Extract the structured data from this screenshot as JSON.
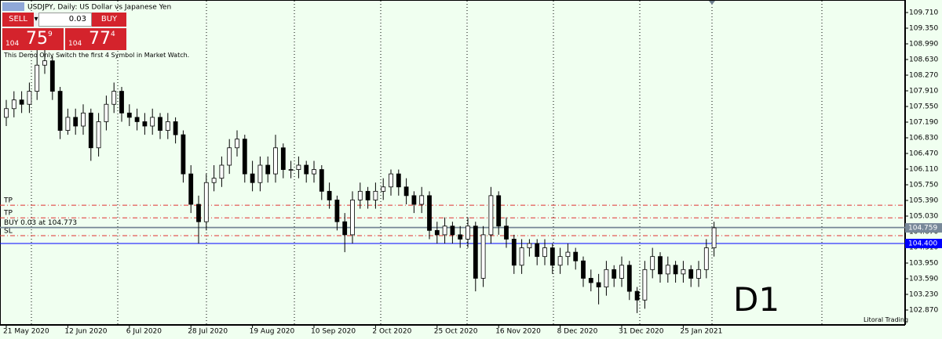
{
  "chart_data": {
    "type": "candlestick",
    "title": "USDJPY, Daily: US Dollar vs Japanese Yen",
    "categories": [
      "21 May 2020",
      null,
      null,
      null,
      null,
      null,
      null,
      null,
      "12 Jun 2020",
      null,
      null,
      null,
      null,
      null,
      null,
      null,
      "6 Jul 2020",
      null,
      null,
      null,
      null,
      null,
      null,
      null,
      "28 Jul 2020",
      null,
      null,
      null,
      null,
      null,
      null,
      null,
      "19 Aug 2020",
      null,
      null,
      null,
      null,
      null,
      null,
      null,
      "10 Sep 2020",
      null,
      null,
      null,
      null,
      null,
      null,
      null,
      "2 Oct 2020",
      null,
      null,
      null,
      null,
      null,
      null,
      null,
      "25 Oct 2020",
      null,
      null,
      null,
      null,
      null,
      null,
      null,
      "16 Nov 2020",
      null,
      null,
      null,
      null,
      null,
      null,
      null,
      "8 Dec 2020",
      null,
      null,
      null,
      null,
      null,
      null,
      null,
      "31 Dec 2020",
      null,
      null,
      null,
      null,
      null,
      null,
      null,
      "25 Jan 2021",
      null,
      null,
      null,
      null
    ],
    "open": [
      107.3,
      107.5,
      107.7,
      107.6,
      107.9,
      108.5,
      108.6,
      107.9,
      107.0,
      107.3,
      107.1,
      107.4,
      106.6,
      107.2,
      107.6,
      107.9,
      107.4,
      107.3,
      107.2,
      107.1,
      107.3,
      107.0,
      107.2,
      106.9,
      106.0,
      105.3,
      104.9,
      105.8,
      105.9,
      106.2,
      106.6,
      106.8,
      106.0,
      105.8,
      106.2,
      106.0,
      106.6,
      106.1,
      106.1,
      106.2,
      106.0,
      106.1,
      105.6,
      105.4,
      104.9,
      104.6,
      105.4,
      105.6,
      105.4,
      105.6,
      105.7,
      106.0,
      105.7,
      105.5,
      105.3,
      105.5,
      104.7,
      104.6,
      104.8,
      104.6,
      104.5,
      104.8,
      103.6,
      104.6,
      105.5,
      104.8,
      104.5,
      103.9,
      104.3,
      104.4,
      104.1,
      104.3,
      103.9,
      104.1,
      104.2,
      104.0,
      103.6,
      103.5,
      103.4,
      103.8,
      103.6,
      103.9,
      103.3,
      103.1,
      103.8,
      104.1,
      103.7,
      103.9,
      103.7,
      103.8,
      103.6,
      103.8,
      104.3
    ],
    "high": [
      107.7,
      107.9,
      107.9,
      108.1,
      108.9,
      108.9,
      108.7,
      108.0,
      107.5,
      107.5,
      107.6,
      107.5,
      107.4,
      107.8,
      108.1,
      108.0,
      107.6,
      107.5,
      107.4,
      107.5,
      107.4,
      107.4,
      107.3,
      107.0,
      106.2,
      105.5,
      106.0,
      106.2,
      106.4,
      106.8,
      107.0,
      106.9,
      106.3,
      106.4,
      106.4,
      106.9,
      106.7,
      106.3,
      106.4,
      106.3,
      106.3,
      106.2,
      105.8,
      105.5,
      105.1,
      105.6,
      105.8,
      105.7,
      105.8,
      105.9,
      106.1,
      106.1,
      105.9,
      105.6,
      105.7,
      105.6,
      104.9,
      105.0,
      104.9,
      104.8,
      105.0,
      104.9,
      104.8,
      105.7,
      105.6,
      105.0,
      104.6,
      104.5,
      104.5,
      104.5,
      104.5,
      104.4,
      104.3,
      104.4,
      104.3,
      104.1,
      103.8,
      103.7,
      104.0,
      103.9,
      104.1,
      104.0,
      103.4,
      104.0,
      104.3,
      104.2,
      104.1,
      104.0,
      104.0,
      103.9,
      104.0,
      104.5,
      104.9
    ],
    "low": [
      107.1,
      107.3,
      107.4,
      107.4,
      107.7,
      108.3,
      107.7,
      106.8,
      106.9,
      106.9,
      106.9,
      106.3,
      106.4,
      107.0,
      107.4,
      107.2,
      107.1,
      107.0,
      106.9,
      106.9,
      106.8,
      106.8,
      106.7,
      105.8,
      105.1,
      104.4,
      104.7,
      105.6,
      105.7,
      106.0,
      106.4,
      105.8,
      105.6,
      105.6,
      105.8,
      105.8,
      105.9,
      105.9,
      105.9,
      105.8,
      105.8,
      105.4,
      105.2,
      104.7,
      104.2,
      104.4,
      105.2,
      105.2,
      105.2,
      105.4,
      105.5,
      105.5,
      105.3,
      105.1,
      105.1,
      104.5,
      104.4,
      104.4,
      104.4,
      104.3,
      104.3,
      103.3,
      103.4,
      104.4,
      104.6,
      104.3,
      103.7,
      103.7,
      104.1,
      103.9,
      103.9,
      103.7,
      103.7,
      103.9,
      103.8,
      103.4,
      103.3,
      103.0,
      103.2,
      103.4,
      103.4,
      103.1,
      102.8,
      102.9,
      103.6,
      103.5,
      103.5,
      103.5,
      103.5,
      103.4,
      103.4,
      103.6,
      104.1
    ],
    "close": [
      107.5,
      107.7,
      107.6,
      107.9,
      108.5,
      108.6,
      107.9,
      107.0,
      107.3,
      107.1,
      107.4,
      106.6,
      107.2,
      107.6,
      107.9,
      107.4,
      107.3,
      107.2,
      107.1,
      107.3,
      107.0,
      107.2,
      106.9,
      106.0,
      105.3,
      104.9,
      105.8,
      105.9,
      106.2,
      106.6,
      106.8,
      106.0,
      105.8,
      106.2,
      106.0,
      106.6,
      106.1,
      106.1,
      106.2,
      106.0,
      106.1,
      105.6,
      105.4,
      104.9,
      104.6,
      105.4,
      105.6,
      105.4,
      105.6,
      105.7,
      106.0,
      105.7,
      105.5,
      105.3,
      105.5,
      104.7,
      104.6,
      104.8,
      104.6,
      104.5,
      104.8,
      103.6,
      104.6,
      105.5,
      104.8,
      104.5,
      103.9,
      104.3,
      104.4,
      104.1,
      104.3,
      103.9,
      104.1,
      104.2,
      104.0,
      103.6,
      103.5,
      103.4,
      103.8,
      103.6,
      103.9,
      103.3,
      103.1,
      103.8,
      104.1,
      103.7,
      103.9,
      103.7,
      103.8,
      103.6,
      103.8,
      104.3,
      104.76
    ],
    "ylim": [
      102.528,
      109.998
    ],
    "yticks": [
      {
        "value": 109.71,
        "label": "109.710"
      },
      {
        "value": 109.35,
        "label": "109.350"
      },
      {
        "value": 108.99,
        "label": "108.990"
      },
      {
        "value": 108.63,
        "label": "108.630"
      },
      {
        "value": 108.27,
        "label": "108.270"
      },
      {
        "value": 107.91,
        "label": "107.910"
      },
      {
        "value": 107.55,
        "label": "107.550"
      },
      {
        "value": 107.19,
        "label": "107.190"
      },
      {
        "value": 106.83,
        "label": "106.830"
      },
      {
        "value": 106.47,
        "label": "106.470"
      },
      {
        "value": 106.11,
        "label": "106.110"
      },
      {
        "value": 105.75,
        "label": "105.750"
      },
      {
        "value": 105.39,
        "label": "105.390"
      },
      {
        "value": 105.03,
        "label": "105.030"
      },
      {
        "value": 104.67,
        "label": "104.670"
      },
      {
        "value": 104.31,
        "label": "104.310"
      },
      {
        "value": 103.95,
        "label": "103.950"
      },
      {
        "value": 103.59,
        "label": "103.590"
      },
      {
        "value": 103.23,
        "label": "103.230"
      },
      {
        "value": 102.87,
        "label": "102.870"
      }
    ],
    "bullish_color": "#ffffff",
    "bearish_color": "#000000",
    "levels": [
      {
        "label": "TP",
        "price": 105.28,
        "color": "#e03030"
      },
      {
        "label": "TP",
        "price": 104.99,
        "color": "#e03030"
      },
      {
        "label": "BUY 0.03 at 104.773",
        "price": 104.773,
        "color": "#708090"
      },
      {
        "label": "SL",
        "price": 104.58,
        "color": "#e03030"
      }
    ],
    "price_markers": [
      {
        "value": 104.759,
        "label": "104.759",
        "color": "#778899"
      },
      {
        "value": 104.4,
        "label": "104.400",
        "color": "#0000ff"
      }
    ]
  },
  "trade_panel": {
    "sell_label": "SELL",
    "buy_label": "BUY",
    "lot": "0.03",
    "sell_price": {
      "big_figure": "104",
      "pips": "75",
      "fraction": "9"
    },
    "buy_price": {
      "big_figure": "104",
      "pips": "77",
      "fraction": "4"
    }
  },
  "notice": "This Demo Only Switch the first 4 Symbol in Market Watch.",
  "timeframe": "D1",
  "brand": "Litoral Trading"
}
